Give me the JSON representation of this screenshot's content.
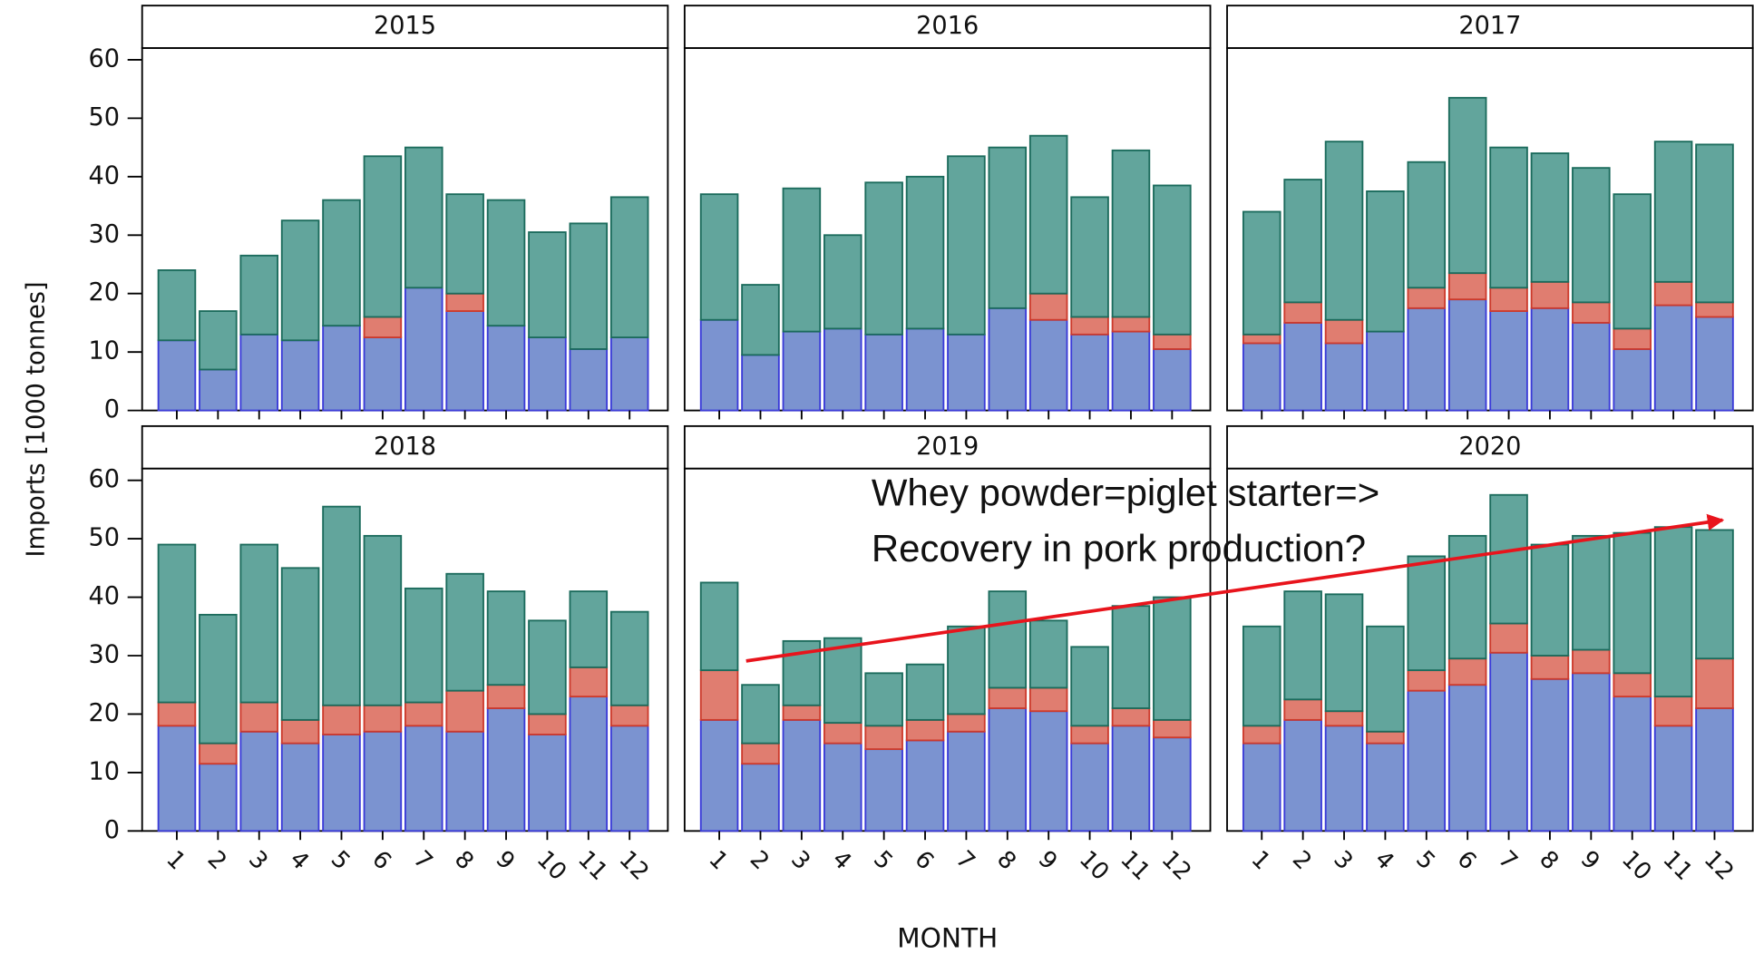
{
  "chart_data": {
    "type": "bar",
    "stacked": true,
    "ylabel": "Imports [1000 tonnes]",
    "xlabel": "MONTH",
    "annotation": [
      "Whey powder=piglet starter=>",
      "Recovery in pork production?"
    ],
    "ylim": [
      0,
      62
    ],
    "yticks": [
      0,
      10,
      20,
      30,
      40,
      50,
      60
    ],
    "categories": [
      "1",
      "2",
      "3",
      "4",
      "5",
      "6",
      "7",
      "8",
      "9",
      "10",
      "11",
      "12"
    ],
    "colors": [
      {
        "fill": "#7b93d0",
        "stroke": "#3a3ad8"
      },
      {
        "fill": "#e07d70",
        "stroke": "#cc3a2c"
      },
      {
        "fill": "#62a59c",
        "stroke": "#1b6b5c"
      }
    ],
    "panels": [
      {
        "title": "2015",
        "series": [
          {
            "values": [
              12,
              7,
              13,
              12,
              14.5,
              12.5,
              21,
              17,
              14.5,
              12.5,
              10.5,
              12.5
            ]
          },
          {
            "values": [
              0,
              0,
              0,
              0,
              0,
              3.5,
              0,
              3,
              0,
              0,
              0,
              0
            ]
          },
          {
            "values": [
              12,
              10,
              13.5,
              20.5,
              21.5,
              27.5,
              24,
              17,
              21.5,
              18,
              21.5,
              24
            ]
          }
        ]
      },
      {
        "title": "2016",
        "series": [
          {
            "values": [
              15.5,
              9.5,
              13.5,
              14,
              13,
              14,
              13,
              17.5,
              15.5,
              13,
              13.5,
              10.5
            ]
          },
          {
            "values": [
              0,
              0,
              0,
              0,
              0,
              0,
              0,
              0,
              4.5,
              3,
              2.5,
              2.5
            ]
          },
          {
            "values": [
              21.5,
              12,
              24.5,
              16,
              26,
              26,
              30.5,
              27.5,
              27,
              20.5,
              28.5,
              25.5
            ]
          }
        ]
      },
      {
        "title": "2017",
        "series": [
          {
            "values": [
              11.5,
              15,
              11.5,
              13.5,
              17.5,
              19,
              17,
              17.5,
              15,
              10.5,
              18,
              16
            ]
          },
          {
            "values": [
              1.5,
              3.5,
              4,
              0,
              3.5,
              4.5,
              4,
              4.5,
              3.5,
              3.5,
              4,
              2.5
            ]
          },
          {
            "values": [
              21,
              21,
              30.5,
              24,
              21.5,
              30,
              24,
              22,
              23,
              23,
              24,
              27
            ]
          }
        ]
      },
      {
        "title": "2018",
        "series": [
          {
            "values": [
              18,
              11.5,
              17,
              15,
              16.5,
              17,
              18,
              17,
              21,
              16.5,
              23,
              18
            ]
          },
          {
            "values": [
              4,
              3.5,
              5,
              4,
              5,
              4.5,
              4,
              7,
              4,
              3.5,
              5,
              3.5
            ]
          },
          {
            "values": [
              27,
              22,
              27,
              26,
              34,
              29,
              19.5,
              20,
              16,
              16,
              13,
              16
            ]
          }
        ]
      },
      {
        "title": "2019",
        "series": [
          {
            "values": [
              19,
              11.5,
              19,
              15,
              14,
              15.5,
              17,
              21,
              20.5,
              15,
              18,
              16
            ]
          },
          {
            "values": [
              8.5,
              3.5,
              2.5,
              3.5,
              4,
              3.5,
              3,
              3.5,
              4,
              3,
              3,
              3
            ]
          },
          {
            "values": [
              15,
              10,
              11,
              14.5,
              9,
              9.5,
              15,
              16.5,
              11.5,
              13.5,
              17.5,
              21
            ]
          }
        ]
      },
      {
        "title": "2020",
        "series": [
          {
            "values": [
              15,
              19,
              18,
              15,
              24,
              25,
              30.5,
              26,
              27,
              23,
              18,
              21
            ]
          },
          {
            "values": [
              3,
              3.5,
              2.5,
              2,
              3.5,
              4.5,
              5,
              4,
              4,
              4,
              5,
              8.5
            ]
          },
          {
            "values": [
              17,
              18.5,
              20,
              18,
              19.5,
              21,
              22,
              19,
              19.5,
              24,
              29,
              22
            ]
          }
        ]
      }
    ]
  }
}
